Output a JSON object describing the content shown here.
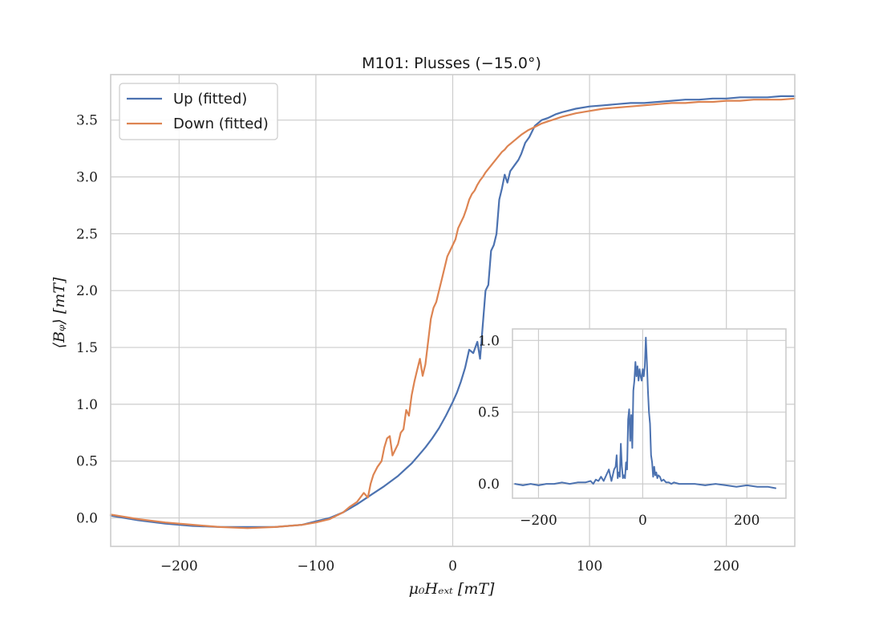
{
  "chart_data": [
    {
      "type": "line",
      "title": "M101:  Plusses (−15.0°)",
      "xlabel": "μ₀Hₑₓₜ [mT]",
      "ylabel": "⟨Bᵩ⟩ [mT]",
      "xlim": [
        -250,
        250
      ],
      "ylim": [
        -0.25,
        3.9
      ],
      "xticks": [
        -200,
        -100,
        0,
        100,
        200
      ],
      "xtick_labels": [
        "−200",
        "−100",
        "0",
        "100",
        "200"
      ],
      "yticks": [
        0.0,
        0.5,
        1.0,
        1.5,
        2.0,
        2.5,
        3.0,
        3.5
      ],
      "ytick_labels": [
        "0.0",
        "0.5",
        "1.0",
        "1.5",
        "2.0",
        "2.5",
        "3.0",
        "3.5"
      ],
      "grid": true,
      "legend_position": "top-left",
      "series": [
        {
          "name": "Up (fitted)",
          "color": "#4c72b0",
          "x": [
            -250,
            -230,
            -210,
            -190,
            -170,
            -150,
            -130,
            -110,
            -100,
            -90,
            -80,
            -70,
            -60,
            -50,
            -40,
            -30,
            -25,
            -20,
            -15,
            -10,
            -5,
            0,
            3,
            6,
            9,
            12,
            15,
            18,
            20,
            22,
            24,
            26,
            28,
            30,
            32,
            34,
            36,
            38,
            40,
            42,
            45,
            48,
            50,
            53,
            56,
            60,
            65,
            70,
            75,
            80,
            90,
            100,
            110,
            120,
            130,
            140,
            150,
            160,
            170,
            180,
            190,
            200,
            210,
            220,
            230,
            240,
            250
          ],
          "y": [
            0.02,
            -0.02,
            -0.05,
            -0.07,
            -0.08,
            -0.08,
            -0.08,
            -0.06,
            -0.03,
            0.0,
            0.05,
            0.12,
            0.2,
            0.28,
            0.37,
            0.48,
            0.55,
            0.62,
            0.7,
            0.79,
            0.9,
            1.02,
            1.1,
            1.2,
            1.32,
            1.48,
            1.45,
            1.55,
            1.4,
            1.7,
            2.0,
            2.05,
            2.35,
            2.4,
            2.5,
            2.8,
            2.9,
            3.02,
            2.95,
            3.05,
            3.1,
            3.15,
            3.2,
            3.3,
            3.35,
            3.45,
            3.5,
            3.52,
            3.55,
            3.57,
            3.6,
            3.62,
            3.63,
            3.64,
            3.65,
            3.65,
            3.66,
            3.67,
            3.68,
            3.68,
            3.69,
            3.69,
            3.7,
            3.7,
            3.7,
            3.71,
            3.71
          ]
        },
        {
          "name": "Down (fitted)",
          "color": "#dd8452",
          "x": [
            -250,
            -230,
            -210,
            -190,
            -170,
            -150,
            -130,
            -110,
            -100,
            -90,
            -80,
            -75,
            -70,
            -65,
            -62,
            -60,
            -58,
            -55,
            -52,
            -50,
            -48,
            -46,
            -44,
            -42,
            -40,
            -38,
            -36,
            -34,
            -32,
            -30,
            -28,
            -26,
            -24,
            -22,
            -20,
            -18,
            -16,
            -14,
            -12,
            -10,
            -8,
            -6,
            -4,
            -2,
            0,
            2,
            4,
            6,
            8,
            10,
            12,
            14,
            16,
            18,
            20,
            22,
            24,
            26,
            28,
            30,
            32,
            34,
            36,
            38,
            40,
            45,
            50,
            55,
            60,
            65,
            70,
            75,
            80,
            90,
            100,
            110,
            120,
            130,
            140,
            150,
            160,
            170,
            180,
            190,
            200,
            210,
            220,
            230,
            240,
            250
          ],
          "y": [
            0.03,
            -0.01,
            -0.04,
            -0.06,
            -0.08,
            -0.09,
            -0.08,
            -0.06,
            -0.04,
            -0.01,
            0.05,
            0.1,
            0.14,
            0.22,
            0.18,
            0.3,
            0.38,
            0.45,
            0.5,
            0.62,
            0.7,
            0.72,
            0.55,
            0.6,
            0.65,
            0.75,
            0.78,
            0.95,
            0.9,
            1.08,
            1.2,
            1.3,
            1.4,
            1.25,
            1.35,
            1.55,
            1.75,
            1.85,
            1.9,
            2.0,
            2.1,
            2.2,
            2.3,
            2.35,
            2.4,
            2.45,
            2.55,
            2.6,
            2.65,
            2.72,
            2.8,
            2.85,
            2.88,
            2.93,
            2.97,
            3.0,
            3.04,
            3.07,
            3.1,
            3.13,
            3.16,
            3.19,
            3.22,
            3.24,
            3.27,
            3.32,
            3.37,
            3.41,
            3.44,
            3.47,
            3.49,
            3.51,
            3.53,
            3.56,
            3.58,
            3.6,
            3.61,
            3.62,
            3.63,
            3.64,
            3.65,
            3.65,
            3.66,
            3.66,
            3.67,
            3.67,
            3.68,
            3.68,
            3.68,
            3.69
          ]
        }
      ]
    },
    {
      "type": "line",
      "title": "",
      "xlabel": "",
      "ylabel": "",
      "xlim": [
        -250,
        275
      ],
      "ylim": [
        -0.1,
        1.08
      ],
      "xticks": [
        -200,
        0,
        200
      ],
      "xtick_labels": [
        "−200",
        "0",
        "200"
      ],
      "yticks": [
        0.0,
        0.5,
        1.0
      ],
      "ytick_labels": [
        "0.0",
        "0.5",
        "1.0"
      ],
      "grid": true,
      "series": [
        {
          "color": "#4c72b0",
          "x": [
            -245,
            -230,
            -215,
            -200,
            -185,
            -170,
            -155,
            -140,
            -125,
            -110,
            -100,
            -95,
            -90,
            -85,
            -80,
            -75,
            -70,
            -65,
            -60,
            -55,
            -52,
            -50,
            -48,
            -46,
            -44,
            -42,
            -40,
            -38,
            -36,
            -34,
            -32,
            -30,
            -28,
            -26,
            -24,
            -22,
            -20,
            -18,
            -16,
            -14,
            -12,
            -10,
            -8,
            -6,
            -4,
            -2,
            0,
            2,
            4,
            6,
            8,
            10,
            12,
            14,
            16,
            18,
            20,
            22,
            24,
            26,
            28,
            30,
            33,
            36,
            40,
            45,
            50,
            55,
            60,
            70,
            80,
            90,
            100,
            120,
            140,
            160,
            180,
            200,
            220,
            240,
            255
          ],
          "y": [
            0.0,
            -0.01,
            0.0,
            -0.01,
            0.0,
            0.0,
            0.01,
            0.0,
            0.01,
            0.01,
            0.02,
            0.0,
            0.03,
            0.02,
            0.05,
            0.02,
            0.06,
            0.1,
            0.02,
            0.1,
            0.12,
            0.2,
            0.04,
            0.08,
            0.05,
            0.28,
            0.12,
            0.04,
            0.06,
            0.04,
            0.15,
            0.1,
            0.45,
            0.52,
            0.3,
            0.48,
            0.25,
            0.65,
            0.72,
            0.85,
            0.75,
            0.82,
            0.72,
            0.8,
            0.75,
            0.72,
            0.8,
            0.75,
            0.82,
            1.02,
            0.85,
            0.65,
            0.5,
            0.42,
            0.2,
            0.15,
            0.05,
            0.12,
            0.06,
            0.08,
            0.04,
            0.06,
            0.05,
            0.02,
            0.03,
            0.01,
            0.01,
            0.0,
            0.01,
            0.0,
            0.0,
            0.0,
            0.0,
            -0.01,
            0.0,
            -0.01,
            -0.02,
            -0.01,
            -0.02,
            -0.02,
            -0.03
          ]
        }
      ]
    }
  ]
}
